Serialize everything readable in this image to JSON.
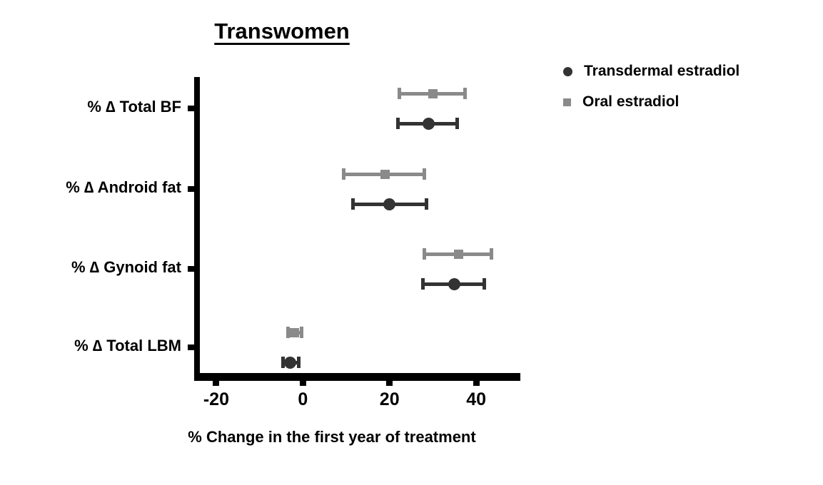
{
  "chart": {
    "title": "Transwomen",
    "xlabel": "% Change in the first year of treatment",
    "legend": [
      {
        "label": "Transdermal estradiol",
        "marker": "circle",
        "color": "#333333"
      },
      {
        "label": "Oral estradiol",
        "marker": "square",
        "color": "#8a8a8a"
      }
    ]
  },
  "chart_data": {
    "type": "scatter",
    "subtype": "horizontal-point-estimates-with-error-bars",
    "title": "Transwomen",
    "xlabel": "% Change in the first year of treatment",
    "ylabel": "",
    "grid": false,
    "legend_position": "top-right",
    "categories": [
      "% ∆ Total BF",
      "% ∆ Android fat",
      "% ∆ Gynoid fat",
      "% ∆ Total LBM"
    ],
    "xlim": [
      -25.1,
      50.2
    ],
    "xticks": [
      -20,
      0,
      20,
      40
    ],
    "series": [
      {
        "name": "Oral estradiol",
        "marker": "square",
        "color": "#8a8a8a",
        "values": [
          {
            "category": "% ∆ Total BF",
            "mean": 30,
            "ci_low": 22.2,
            "ci_high": 37.4
          },
          {
            "category": "% ∆ Android fat",
            "mean": 19,
            "ci_low": 9.5,
            "ci_high": 28.0
          },
          {
            "category": "% ∆ Gynoid fat",
            "mean": 36,
            "ci_low": 28.0,
            "ci_high": 43.5
          },
          {
            "category": "% ∆ Total LBM",
            "mean": -2,
            "ci_low": -3.5,
            "ci_high": -0.3
          }
        ]
      },
      {
        "name": "Transdermal estradiol",
        "marker": "circle",
        "color": "#333333",
        "values": [
          {
            "category": "% ∆ Total BF",
            "mean": 29,
            "ci_low": 22.0,
            "ci_high": 35.6
          },
          {
            "category": "% ∆ Android fat",
            "mean": 20,
            "ci_low": 11.5,
            "ci_high": 28.5
          },
          {
            "category": "% ∆ Gynoid fat",
            "mean": 35,
            "ci_low": 27.7,
            "ci_high": 41.8
          },
          {
            "category": "% ∆ Total LBM",
            "mean": -3,
            "ci_low": -4.6,
            "ci_high": -1.0
          }
        ]
      }
    ]
  }
}
